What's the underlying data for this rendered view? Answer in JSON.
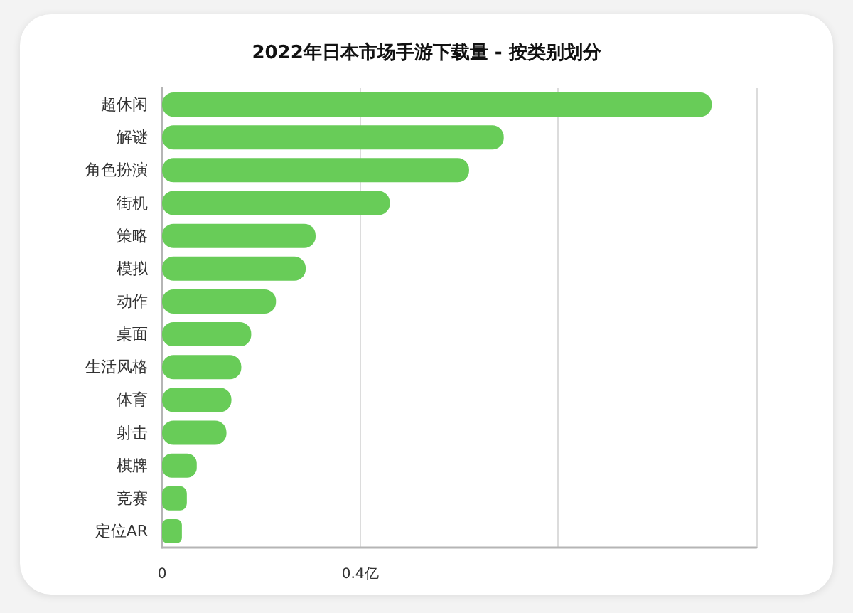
{
  "chart_data": {
    "type": "bar",
    "orientation": "horizontal",
    "title": "2022年日本市场手游下载量 - 按类别划分",
    "categories": [
      "超休闲",
      "解谜",
      "角色扮演",
      "街机",
      "策略",
      "模拟",
      "动作",
      "桌面",
      "生活风格",
      "体育",
      "射击",
      "棋牌",
      "竞赛",
      "定位AR"
    ],
    "values": [
      1.11,
      0.69,
      0.62,
      0.46,
      0.31,
      0.29,
      0.23,
      0.18,
      0.16,
      0.14,
      0.13,
      0.07,
      0.05,
      0.04
    ],
    "color": "#68cc58",
    "xlim": [
      0,
      1.2
    ],
    "xticks": [
      0,
      {
        "value": 0.4,
        "label": "0.4亿"
      },
      {
        "value": 0.8,
        "label": null
      },
      {
        "value": 1.2,
        "label": null
      }
    ],
    "grid": "x"
  }
}
